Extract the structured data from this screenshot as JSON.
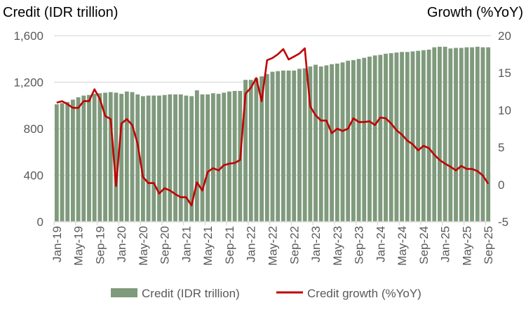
{
  "chart_data": {
    "type": "bar+line",
    "left_axis_title": "Credit (IDR trillion)",
    "right_axis_title": "Growth (%YoY)",
    "ylim_left": [
      0,
      1600
    ],
    "yticks_left": [
      "0",
      "400",
      "800",
      "1,200",
      "1,600"
    ],
    "yticks_left_values": [
      0,
      400,
      800,
      1200,
      1600
    ],
    "ylim_right": [
      -5,
      20
    ],
    "yticks_right": [
      "-5",
      "0",
      "5",
      "10",
      "15",
      "20"
    ],
    "yticks_right_values": [
      -5,
      0,
      5,
      10,
      15,
      20
    ],
    "grid": true,
    "legend_position": "bottom",
    "x_tick_labels": [
      "Jan-19",
      "May-19",
      "Sep-19",
      "Jan-20",
      "May-20",
      "Sep-20",
      "Jan-21",
      "May-21",
      "Sep-21",
      "Jan-22",
      "May-22",
      "Sep-22",
      "Jan-23",
      "May-23",
      "Sep-23",
      "Jan-24",
      "May-24",
      "Sep-24",
      "Jan-25",
      "May-25",
      "Sep-25"
    ],
    "x_tick_every": 4,
    "series": [
      {
        "name": "Credit (IDR trillion)",
        "type": "bar",
        "axis": "left",
        "color": "#7f9a7c",
        "values": [
          1010,
          1020,
          1030,
          1050,
          1070,
          1085,
          1090,
          1100,
          1105,
          1110,
          1115,
          1110,
          1100,
          1120,
          1115,
          1095,
          1080,
          1085,
          1085,
          1085,
          1090,
          1095,
          1095,
          1095,
          1085,
          1080,
          1130,
          1095,
          1095,
          1105,
          1100,
          1110,
          1120,
          1125,
          1125,
          1220,
          1220,
          1235,
          1250,
          1270,
          1290,
          1295,
          1300,
          1300,
          1300,
          1315,
          1320,
          1335,
          1350,
          1335,
          1345,
          1355,
          1360,
          1370,
          1385,
          1390,
          1400,
          1410,
          1420,
          1430,
          1435,
          1445,
          1450,
          1455,
          1460,
          1460,
          1465,
          1470,
          1475,
          1480,
          1500,
          1505,
          1505,
          1490,
          1495,
          1495,
          1500,
          1500,
          1505,
          1500,
          1500
        ]
      },
      {
        "name": "Credit growth (%YoY)",
        "type": "line",
        "axis": "right",
        "color": "#c00000",
        "values": [
          11.0,
          11.2,
          10.8,
          10.3,
          10.3,
          11.2,
          11.2,
          12.8,
          11.5,
          9.2,
          8.8,
          -0.2,
          8.2,
          8.8,
          8.0,
          5.5,
          1.0,
          0.2,
          0.2,
          -1.2,
          -0.5,
          -0.8,
          -1.3,
          -1.7,
          -1.7,
          -2.8,
          0.3,
          -0.8,
          1.7,
          2.2,
          1.9,
          2.6,
          2.8,
          2.9,
          3.3,
          12.2,
          13.0,
          14.3,
          11.2,
          16.7,
          17.0,
          17.5,
          18.2,
          16.8,
          17.2,
          17.6,
          18.3,
          10.5,
          9.3,
          8.6,
          8.6,
          6.9,
          7.5,
          7.2,
          7.5,
          8.9,
          8.4,
          8.4,
          8.5,
          8.0,
          9.0,
          8.9,
          8.2,
          7.3,
          6.7,
          5.9,
          5.4,
          4.6,
          5.2,
          4.9,
          4.0,
          3.3,
          2.8,
          2.4,
          1.9,
          2.5,
          2.1,
          2.1,
          1.8,
          1.2,
          0.1
        ]
      }
    ]
  }
}
